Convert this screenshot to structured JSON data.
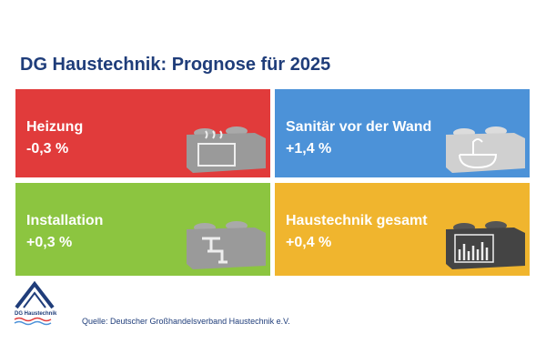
{
  "header": {
    "title": "DG Haustechnik: Prognose für 2025"
  },
  "tiles": [
    {
      "label": "Heizung",
      "value": "-0,3 %"
    },
    {
      "label": "Sanitär vor der Wand",
      "value": "+1,4 %"
    },
    {
      "label": "Installation",
      "value": "+0,3 %"
    },
    {
      "label": "Haustechnik gesamt",
      "value": "+0,4 %"
    }
  ],
  "logo": {
    "text": "DG Haustechnik"
  },
  "source": "Quelle: Deutscher Großhandelsverband Haustechnik e.V."
}
